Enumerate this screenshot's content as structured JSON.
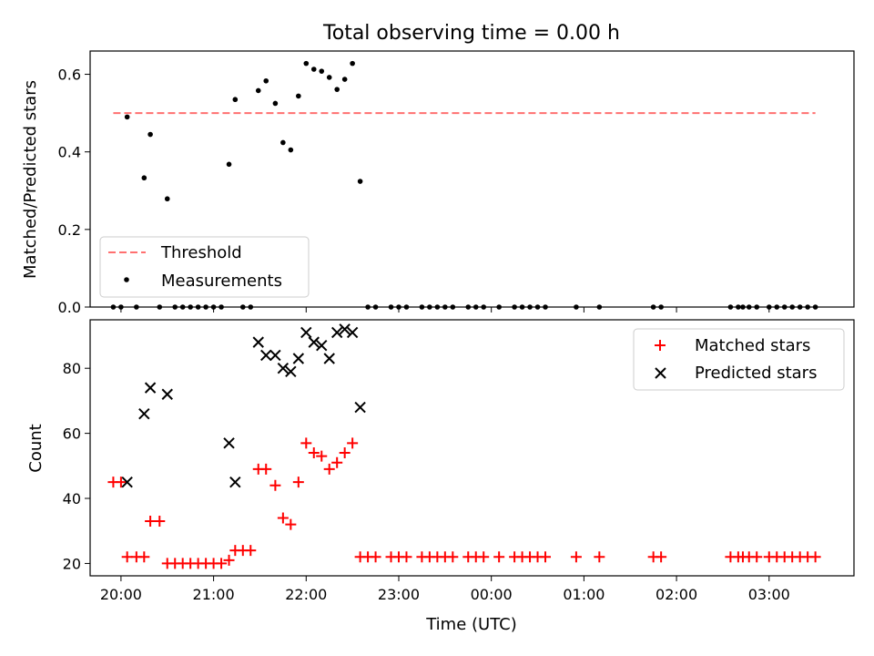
{
  "chart_data": [
    {
      "type": "scatter",
      "title": "Total observing time = 0.00 h",
      "xlabel": "",
      "ylabel": "Matched/Predicted stars",
      "ylim": [
        0,
        0.66
      ],
      "yticks": [
        "0.0",
        "0.2",
        "0.4",
        "0.6"
      ],
      "legend_position": "lower-left",
      "threshold": {
        "name": "Threshold",
        "value": 0.5,
        "x_start": "19:55",
        "x_end": "03:30",
        "color": "#ff7070"
      },
      "series": [
        {
          "name": "Measurements",
          "color": "#000000",
          "points": [
            [
              "19:55",
              0.0
            ],
            [
              "20:00",
              0.0
            ],
            [
              "20:04",
              0.49
            ],
            [
              "20:10",
              0.0
            ],
            [
              "20:15",
              0.333
            ],
            [
              "20:19",
              0.445
            ],
            [
              "20:25",
              0.0
            ],
            [
              "20:30",
              0.279
            ],
            [
              "20:35",
              0.0
            ],
            [
              "20:40",
              0.0
            ],
            [
              "20:45",
              0.0
            ],
            [
              "20:50",
              0.0
            ],
            [
              "20:55",
              0.0
            ],
            [
              "21:00",
              0.0
            ],
            [
              "21:05",
              0.0
            ],
            [
              "21:10",
              0.368
            ],
            [
              "21:14",
              0.535
            ],
            [
              "21:19",
              0.0
            ],
            [
              "21:24",
              0.0
            ],
            [
              "21:29",
              0.558
            ],
            [
              "21:34",
              0.583
            ],
            [
              "21:40",
              0.525
            ],
            [
              "21:45",
              0.424
            ],
            [
              "21:50",
              0.405
            ],
            [
              "21:55",
              0.544
            ],
            [
              "22:00",
              0.628
            ],
            [
              "22:05",
              0.613
            ],
            [
              "22:10",
              0.608
            ],
            [
              "22:15",
              0.592
            ],
            [
              "22:20",
              0.561
            ],
            [
              "22:25",
              0.587
            ],
            [
              "22:30",
              0.628
            ],
            [
              "22:35",
              0.324
            ],
            [
              "22:40",
              0.0
            ],
            [
              "22:45",
              0.0
            ],
            [
              "22:55",
              0.0
            ],
            [
              "23:00",
              0.0
            ],
            [
              "23:05",
              0.0
            ],
            [
              "23:15",
              0.0
            ],
            [
              "23:20",
              0.0
            ],
            [
              "23:25",
              0.0
            ],
            [
              "23:30",
              0.0
            ],
            [
              "23:35",
              0.0
            ],
            [
              "23:45",
              0.0
            ],
            [
              "23:50",
              0.0
            ],
            [
              "23:55",
              0.0
            ],
            [
              "00:05",
              0.0
            ],
            [
              "00:15",
              0.0
            ],
            [
              "00:20",
              0.0
            ],
            [
              "00:25",
              0.0
            ],
            [
              "00:30",
              0.0
            ],
            [
              "00:35",
              0.0
            ],
            [
              "00:55",
              0.0
            ],
            [
              "01:10",
              0.0
            ],
            [
              "01:45",
              0.0
            ],
            [
              "01:50",
              0.0
            ],
            [
              "02:35",
              0.0
            ],
            [
              "02:40",
              0.0
            ],
            [
              "02:43",
              0.0
            ],
            [
              "02:47",
              0.0
            ],
            [
              "02:52",
              0.0
            ],
            [
              "03:00",
              0.0
            ],
            [
              "03:05",
              0.0
            ],
            [
              "03:10",
              0.0
            ],
            [
              "03:15",
              0.0
            ],
            [
              "03:20",
              0.0
            ],
            [
              "03:25",
              0.0
            ],
            [
              "03:30",
              0.0
            ]
          ]
        }
      ]
    },
    {
      "type": "scatter",
      "xlabel": "Time (UTC)",
      "ylabel": "Count",
      "ylim": [
        16.2,
        94.9
      ],
      "yticks": [
        "20",
        "40",
        "60",
        "80"
      ],
      "xticks": [
        "20:00",
        "21:00",
        "22:00",
        "23:00",
        "00:00",
        "01:00",
        "02:00",
        "03:00"
      ],
      "xlim": [
        "19:40",
        "03:55"
      ],
      "legend_position": "top-right",
      "series": [
        {
          "name": "Matched stars",
          "marker": "plus",
          "color": "#ff0000",
          "points": [
            [
              "19:55",
              45
            ],
            [
              "20:00",
              45
            ],
            [
              "20:04",
              22
            ],
            [
              "20:10",
              22
            ],
            [
              "20:15",
              22
            ],
            [
              "20:19",
              33
            ],
            [
              "20:25",
              33
            ],
            [
              "20:30",
              20
            ],
            [
              "20:35",
              20
            ],
            [
              "20:40",
              20
            ],
            [
              "20:45",
              20
            ],
            [
              "20:50",
              20
            ],
            [
              "20:55",
              20
            ],
            [
              "21:00",
              20
            ],
            [
              "21:05",
              20
            ],
            [
              "21:10",
              21
            ],
            [
              "21:14",
              24
            ],
            [
              "21:19",
              24
            ],
            [
              "21:24",
              24
            ],
            [
              "21:29",
              49
            ],
            [
              "21:34",
              49
            ],
            [
              "21:40",
              44
            ],
            [
              "21:45",
              34
            ],
            [
              "21:50",
              32
            ],
            [
              "21:55",
              45
            ],
            [
              "22:00",
              57
            ],
            [
              "22:05",
              54
            ],
            [
              "22:10",
              53
            ],
            [
              "22:15",
              49
            ],
            [
              "22:20",
              51
            ],
            [
              "22:25",
              54
            ],
            [
              "22:30",
              57
            ],
            [
              "22:35",
              22
            ],
            [
              "22:40",
              22
            ],
            [
              "22:45",
              22
            ],
            [
              "22:55",
              22
            ],
            [
              "23:00",
              22
            ],
            [
              "23:05",
              22
            ],
            [
              "23:15",
              22
            ],
            [
              "23:20",
              22
            ],
            [
              "23:25",
              22
            ],
            [
              "23:30",
              22
            ],
            [
              "23:35",
              22
            ],
            [
              "23:45",
              22
            ],
            [
              "23:50",
              22
            ],
            [
              "23:55",
              22
            ],
            [
              "00:05",
              22
            ],
            [
              "00:15",
              22
            ],
            [
              "00:20",
              22
            ],
            [
              "00:25",
              22
            ],
            [
              "00:30",
              22
            ],
            [
              "00:35",
              22
            ],
            [
              "00:55",
              22
            ],
            [
              "01:10",
              22
            ],
            [
              "01:45",
              22
            ],
            [
              "01:50",
              22
            ],
            [
              "02:35",
              22
            ],
            [
              "02:40",
              22
            ],
            [
              "02:43",
              22
            ],
            [
              "02:47",
              22
            ],
            [
              "02:52",
              22
            ],
            [
              "03:00",
              22
            ],
            [
              "03:05",
              22
            ],
            [
              "03:10",
              22
            ],
            [
              "03:15",
              22
            ],
            [
              "03:20",
              22
            ],
            [
              "03:25",
              22
            ],
            [
              "03:30",
              22
            ]
          ]
        },
        {
          "name": "Predicted stars",
          "marker": "x",
          "color": "#000000",
          "points": [
            [
              "20:04",
              45
            ],
            [
              "20:15",
              66
            ],
            [
              "20:19",
              74
            ],
            [
              "20:30",
              72
            ],
            [
              "21:10",
              57
            ],
            [
              "21:14",
              45
            ],
            [
              "21:29",
              88
            ],
            [
              "21:34",
              84
            ],
            [
              "21:40",
              84
            ],
            [
              "21:45",
              80
            ],
            [
              "21:50",
              79
            ],
            [
              "21:55",
              83
            ],
            [
              "22:00",
              91
            ],
            [
              "22:05",
              88
            ],
            [
              "22:10",
              87
            ],
            [
              "22:15",
              83
            ],
            [
              "22:20",
              91
            ],
            [
              "22:25",
              92
            ],
            [
              "22:30",
              91
            ],
            [
              "22:35",
              68
            ]
          ]
        }
      ]
    }
  ]
}
